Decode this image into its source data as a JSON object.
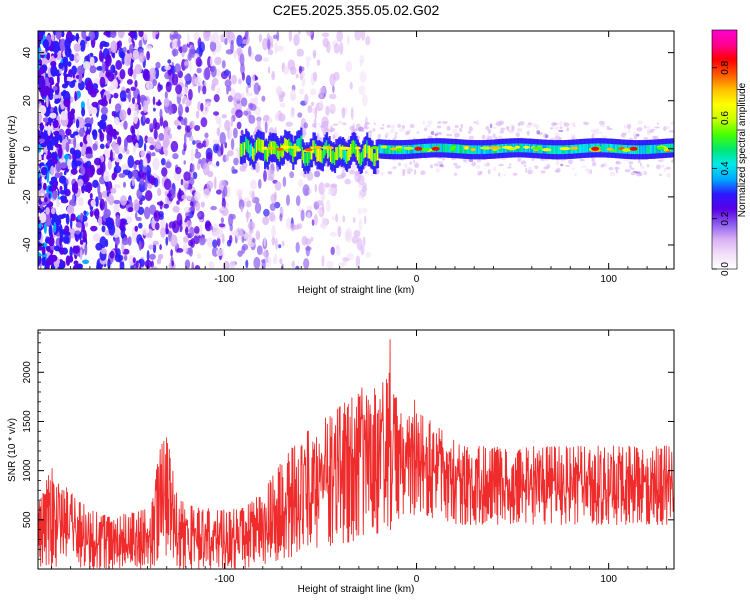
{
  "figure_title": "C2E5.2025.355.05.02.G02",
  "chart_data": [
    {
      "type": "heatmap",
      "xlabel": "Height of straight line (km)",
      "ylabel": "Frequency (Hz)",
      "xlim": [
        -197,
        134
      ],
      "ylim": [
        -50,
        49
      ],
      "x_ticks": [
        -100,
        0,
        100
      ],
      "y_ticks": [
        -40,
        -20,
        0,
        20,
        40
      ],
      "colorbar": {
        "label": "Normalized spectral amplitude",
        "range": [
          0,
          0.95
        ],
        "ticks": [
          0.0,
          0.2,
          0.4,
          0.6,
          0.8
        ],
        "tick_labels": [
          "0.0",
          "0.2",
          "0.4",
          "0.6",
          "0.8"
        ],
        "colors": [
          "#ffffff",
          "#f2dff8",
          "#d8b0f4",
          "#8b5cf0",
          "#5a00e6",
          "#2a18ff",
          "#00a8ff",
          "#00eaea",
          "#00e870",
          "#48ff00",
          "#c8ff00",
          "#ffff00",
          "#ffc000",
          "#ff5a00",
          "#ff0000",
          "#ff0090",
          "#ff00d0"
        ]
      },
      "features": [
        {
          "desc": "broadband noise",
          "x_range": [
            -197,
            -25
          ],
          "freq_range": [
            -50,
            49
          ]
        },
        {
          "desc": "narrow band",
          "x_range": [
            -92,
            134
          ],
          "center_freq": 0,
          "width_hz": 4
        },
        {
          "desc": "strong peaks",
          "x": [
            1,
            10,
            93,
            113
          ],
          "center_freq": 0
        }
      ]
    },
    {
      "type": "line",
      "xlabel": "Height of straight line (km)",
      "ylabel": "SNR (10 * v/v)",
      "xlim": [
        -197,
        134
      ],
      "ylim": [
        0,
        2430
      ],
      "x_ticks": [
        -100,
        0,
        100
      ],
      "y_ticks": [
        500,
        1000,
        1500,
        2000
      ],
      "series": [
        {
          "color": "#ef2b2b",
          "x": [
            -197,
            -190,
            -180,
            -170,
            -160,
            -150,
            -140,
            -133,
            -130,
            -128,
            -125,
            -120,
            -110,
            -100,
            -90,
            -80,
            -70,
            -60,
            -50,
            -40,
            -30,
            -25,
            -20,
            -15,
            -14,
            -12,
            -8,
            -5,
            0,
            5,
            10,
            15,
            20,
            30,
            40,
            50,
            60,
            70,
            80,
            90,
            100,
            110,
            120,
            130,
            134
          ],
          "low": [
            0,
            0,
            0,
            0,
            0,
            0,
            0,
            50,
            100,
            80,
            0,
            0,
            0,
            0,
            0,
            50,
            100,
            150,
            200,
            250,
            300,
            350,
            350,
            400,
            400,
            400,
            500,
            550,
            550,
            550,
            500,
            500,
            450,
            450,
            450,
            450,
            450,
            450,
            450,
            450,
            450,
            450,
            450,
            450,
            450
          ],
          "high": [
            650,
            1050,
            780,
            600,
            550,
            560,
            620,
            1250,
            1350,
            1150,
            780,
            650,
            620,
            600,
            620,
            780,
            1100,
            1350,
            1500,
            1650,
            1800,
            2000,
            1750,
            2200,
            2420,
            1800,
            1650,
            1800,
            1700,
            1550,
            1450,
            1400,
            1300,
            1250,
            1250,
            1200,
            1250,
            1250,
            1250,
            1250,
            1250,
            1250,
            1250,
            1250,
            1250
          ]
        }
      ]
    }
  ]
}
